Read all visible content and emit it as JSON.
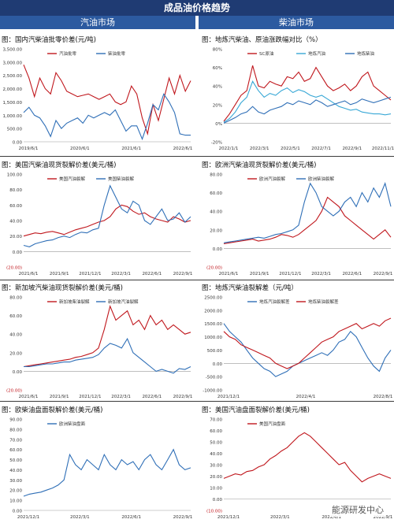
{
  "page_title": "成品油价格趋势",
  "sections": {
    "left": "汽油市场",
    "right": "柴油市场"
  },
  "watermark": "能源研发中心",
  "colors": {
    "red": "#c0171d",
    "blue": "#2f6fb7",
    "lightblue": "#39a8d6",
    "header": "#1f3b73",
    "subheader": "#2c5aa0"
  },
  "chart_data": [
    {
      "id": "p1",
      "title": "图：国内汽柴油批零价差(元/吨)",
      "type": "line",
      "ylim": [
        0,
        3500
      ],
      "yticks": [
        "0.00",
        "500.00",
        "1,000.00",
        "1,500.00",
        "2,000.00",
        "2,500.00",
        "3,000.00",
        "3,500.00"
      ],
      "xlabels": [
        "2019/6/1",
        "2020/6/1",
        "2021/6/1",
        "2022/6/1"
      ],
      "legend_pos": "top-right",
      "series": [
        {
          "name": "汽油批零",
          "color": "red",
          "values": [
            2900,
            2400,
            1700,
            2400,
            2000,
            1800,
            2600,
            2300,
            1900,
            1800,
            1700,
            1750,
            1800,
            1700,
            1600,
            1700,
            1800,
            1500,
            1400,
            1500,
            2100,
            1800,
            900,
            300,
            1400,
            800,
            1600,
            2400,
            1800,
            2500,
            1900,
            2300
          ]
        },
        {
          "name": "柴油批零",
          "color": "blue",
          "values": [
            1100,
            1300,
            1000,
            900,
            600,
            200,
            800,
            500,
            700,
            800,
            900,
            700,
            1000,
            900,
            1000,
            1100,
            1000,
            1200,
            800,
            400,
            600,
            600,
            100,
            700,
            1400,
            1200,
            1800,
            1500,
            1100,
            300,
            250,
            250
          ]
        }
      ]
    },
    {
      "id": "p2",
      "title": "图：地炼汽柴油、原油涨跌幅对比（%）",
      "type": "line",
      "ylim": [
        -20,
        80
      ],
      "yticks": [
        "-20%",
        "0%",
        "20%",
        "40%",
        "60%",
        "80%"
      ],
      "xlabels": [
        "2022/1/1",
        "2022/3/1",
        "2022/5/1",
        "2022/7/1",
        "2022/9/1",
        "2022/11/1"
      ],
      "legend_pos": "top",
      "series": [
        {
          "name": "SC原油",
          "color": "red",
          "values": [
            2,
            10,
            20,
            30,
            35,
            62,
            40,
            38,
            45,
            42,
            40,
            50,
            48,
            55,
            45,
            48,
            60,
            50,
            40,
            35,
            38,
            42,
            35,
            40,
            50,
            55,
            40,
            35,
            30,
            25
          ]
        },
        {
          "name": "地炼汽油",
          "color": "lightblue",
          "values": [
            1,
            5,
            12,
            22,
            28,
            45,
            35,
            28,
            32,
            30,
            35,
            38,
            33,
            36,
            34,
            30,
            28,
            30,
            26,
            22,
            18,
            16,
            14,
            15,
            12,
            11,
            10,
            10,
            9,
            10
          ]
        },
        {
          "name": "地炼柴油",
          "color": "blue",
          "values": [
            0,
            3,
            6,
            10,
            12,
            18,
            12,
            10,
            14,
            16,
            18,
            22,
            20,
            24,
            22,
            20,
            25,
            22,
            18,
            20,
            22,
            24,
            20,
            22,
            26,
            24,
            22,
            24,
            26,
            28
          ]
        }
      ]
    },
    {
      "id": "p3",
      "title": "图：美国汽柴油现货裂解价差(美元/桶)",
      "type": "line",
      "ylim": [
        -20,
        100
      ],
      "yticks": [
        "(20.00)",
        "0.00",
        "20.00",
        "40.00",
        "60.00",
        "80.00",
        "100.00"
      ],
      "xlabels": [
        "2021/6/1",
        "2021/9/1",
        "2021/12/1",
        "2022/3/1",
        "2022/6/1",
        "2022/9/1"
      ],
      "legend_pos": "top",
      "series": [
        {
          "name": "美国汽油裂解",
          "color": "red",
          "values": [
            20,
            22,
            24,
            23,
            25,
            26,
            24,
            22,
            25,
            28,
            30,
            32,
            35,
            38,
            40,
            45,
            55,
            60,
            58,
            52,
            48,
            50,
            45,
            42,
            40,
            38,
            45,
            42,
            38,
            40
          ]
        },
        {
          "name": "美国柴油裂解",
          "color": "blue",
          "values": [
            8,
            6,
            10,
            12,
            14,
            15,
            18,
            20,
            18,
            22,
            25,
            24,
            28,
            30,
            60,
            85,
            70,
            55,
            50,
            65,
            60,
            40,
            35,
            45,
            55,
            40,
            42,
            50,
            38,
            45
          ]
        }
      ]
    },
    {
      "id": "p4",
      "title": "图：欧洲汽柴油现货裂解价差(美元/桶)",
      "type": "line",
      "ylim": [
        -20,
        80
      ],
      "yticks": [
        "(20.00)",
        "0.00",
        "20.00",
        "40.00",
        "60.00",
        "80.00"
      ],
      "xlabels": [
        "2021/6/1",
        "2021/9/1",
        "2021/12/1",
        "2022/3/1",
        "2022/6/1",
        "2022/9/1"
      ],
      "legend_pos": "top",
      "series": [
        {
          "name": "欧洲汽油裂解",
          "color": "red",
          "values": [
            5,
            6,
            7,
            8,
            9,
            10,
            8,
            9,
            10,
            12,
            15,
            14,
            12,
            15,
            20,
            25,
            30,
            40,
            55,
            50,
            45,
            35,
            30,
            25,
            20,
            15,
            10,
            15,
            20,
            12
          ]
        },
        {
          "name": "欧洲柴油裂解",
          "color": "blue",
          "values": [
            6,
            7,
            8,
            9,
            10,
            11,
            12,
            11,
            13,
            15,
            16,
            18,
            20,
            25,
            50,
            70,
            60,
            45,
            40,
            35,
            40,
            50,
            55,
            45,
            60,
            50,
            65,
            55,
            70,
            45
          ]
        }
      ]
    },
    {
      "id": "p5",
      "title": "图：新加坡汽柴油现货裂解价差(美元/桶)",
      "type": "line",
      "ylim": [
        -20,
        80
      ],
      "yticks": [
        "(20.00)",
        "0.00",
        "20.00",
        "40.00",
        "60.00",
        "80.00"
      ],
      "xlabels": [
        "2021/6/1",
        "2021/9/1",
        "2021/12/1",
        "2022/3/1",
        "2022/6/1",
        "2022/9/1"
      ],
      "legend_pos": "top-left",
      "series": [
        {
          "name": "新加坡柴油裂解",
          "color": "red",
          "values": [
            5,
            6,
            7,
            8,
            9,
            10,
            11,
            12,
            13,
            15,
            16,
            18,
            20,
            25,
            45,
            70,
            55,
            60,
            65,
            50,
            55,
            45,
            60,
            50,
            55,
            45,
            50,
            45,
            40,
            42
          ]
        },
        {
          "name": "新加坡汽油裂解",
          "color": "blue",
          "values": [
            5,
            5,
            6,
            7,
            8,
            8,
            9,
            10,
            10,
            12,
            13,
            14,
            15,
            18,
            25,
            30,
            28,
            25,
            35,
            20,
            15,
            10,
            5,
            0,
            2,
            0,
            -2,
            3,
            2,
            5
          ]
        }
      ]
    },
    {
      "id": "p6",
      "title": "图：地炼汽柴油裂解差（元/吨）",
      "type": "line",
      "ylim": [
        -1000,
        2500
      ],
      "yticks": [
        "-1000.00",
        "-500.00",
        "0.00",
        "500.00",
        "1000.00",
        "1500.00",
        "2000.00",
        "2500.00"
      ],
      "xlabels": [
        "2021/12/1",
        "2022/4/1",
        "2022/8/1"
      ],
      "legend_pos": "top",
      "series": [
        {
          "name": "地炼汽油裂解差",
          "color": "blue",
          "values": [
            1500,
            1200,
            1000,
            800,
            500,
            200,
            0,
            -200,
            -300,
            -500,
            -400,
            -300,
            -100,
            0,
            100,
            200,
            300,
            400,
            300,
            500,
            800,
            900,
            1200,
            1000,
            600,
            200,
            -100,
            -300,
            200,
            500
          ]
        },
        {
          "name": "地炼柴油裂解差",
          "color": "red",
          "values": [
            1200,
            1000,
            900,
            700,
            600,
            500,
            400,
            300,
            200,
            0,
            -100,
            -200,
            -100,
            0,
            200,
            400,
            600,
            800,
            900,
            1000,
            1200,
            1300,
            1400,
            1500,
            1300,
            1400,
            1500,
            1400,
            1600,
            1700
          ]
        }
      ]
    },
    {
      "id": "p7",
      "title": "图：欧柴油盘面裂解价差(美元/桶)",
      "type": "line",
      "ylim": [
        0,
        90
      ],
      "yticks": [
        "0.00",
        "10.00",
        "20.00",
        "30.00",
        "40.00",
        "50.00",
        "60.00",
        "70.00",
        "80.00",
        "90.00"
      ],
      "xlabels": [
        "2021/12/1",
        "2022/3/1",
        "2022/6/1",
        "2022/9/1"
      ],
      "legend_pos": "top",
      "series": [
        {
          "name": "欧洲柴油盘面",
          "color": "blue",
          "values": [
            14,
            16,
            17,
            18,
            20,
            22,
            25,
            30,
            55,
            45,
            40,
            50,
            45,
            40,
            55,
            45,
            40,
            50,
            45,
            48,
            40,
            50,
            55,
            45,
            40,
            50,
            60,
            45,
            40,
            42
          ]
        }
      ]
    },
    {
      "id": "p8",
      "title": "图：美国汽油盘面裂解价差(美元/桶)",
      "type": "line",
      "ylim": [
        -10,
        70
      ],
      "yticks": [
        "(10.00)",
        "0.00",
        "10.00",
        "20.00",
        "30.00",
        "40.00",
        "50.00",
        "60.00",
        "70.00"
      ],
      "xlabels": [
        "2021/12/1",
        "2022/3/1",
        "2022/6/1",
        "2022/9/1"
      ],
      "legend_pos": "top",
      "series": [
        {
          "name": "美国汽油盘面",
          "color": "red",
          "values": [
            18,
            20,
            22,
            21,
            24,
            25,
            28,
            30,
            35,
            38,
            42,
            45,
            50,
            55,
            58,
            55,
            50,
            45,
            40,
            35,
            30,
            32,
            25,
            20,
            15,
            18,
            20,
            22,
            20,
            18
          ]
        }
      ]
    }
  ]
}
